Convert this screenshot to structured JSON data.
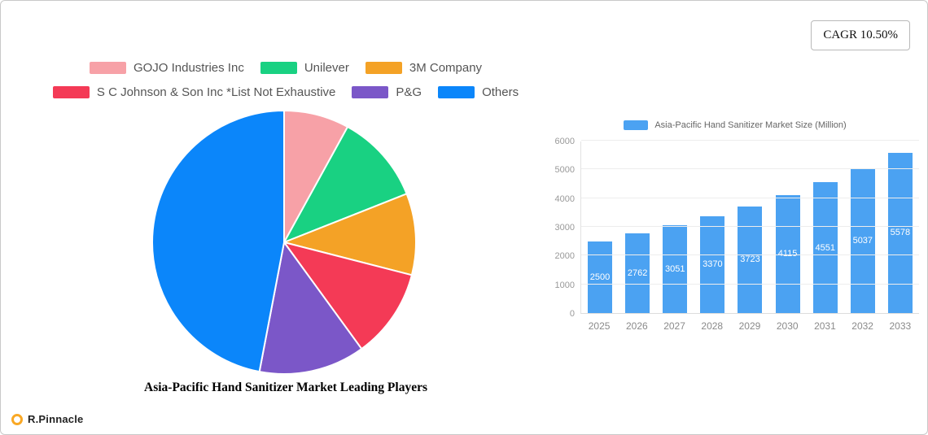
{
  "cagr_label": "CAGR 10.50%",
  "brand": {
    "name": "R.Pinnacle",
    "icon_color": "#f9a825"
  },
  "chart_data": [
    {
      "type": "pie",
      "title": "Asia-Pacific Hand Sanitizer Market Leading Players",
      "legend_position": "top",
      "legend_rows": [
        [
          0,
          1,
          2
        ],
        [
          3,
          4,
          5
        ]
      ],
      "slices": [
        {
          "label": "GOJO Industries Inc",
          "value": 8,
          "color": "#f7a1a7"
        },
        {
          "label": "Unilever",
          "value": 11,
          "color": "#19d182"
        },
        {
          "label": "3M Company",
          "value": 10,
          "color": "#f4a226"
        },
        {
          "label": "S  C  Johnson & Son Inc *List Not Exhaustive",
          "value": 11,
          "color": "#f43a56"
        },
        {
          "label": "P&G",
          "value": 13,
          "color": "#7b57c8"
        },
        {
          "label": "Others",
          "value": 47,
          "color": "#0b86fa"
        }
      ],
      "start_angle_deg": 0,
      "direction": "clockwise"
    },
    {
      "type": "bar",
      "legend": "Asia-Pacific Hand Sanitizer Market Size (Million)",
      "categories": [
        "2025",
        "2026",
        "2027",
        "2028",
        "2029",
        "2030",
        "2031",
        "2032",
        "2033"
      ],
      "values": [
        2500,
        2762,
        3051,
        3370,
        3723,
        4115,
        4551,
        5037,
        5578
      ],
      "bar_color": "#4ba2f2",
      "value_label_color": "#ffffff",
      "xlabel": "",
      "ylabel": "",
      "ylim": [
        0,
        6000
      ],
      "yticks": [
        0,
        1000,
        2000,
        3000,
        4000,
        5000,
        6000
      ],
      "grid": true,
      "legend_position": "top"
    }
  ]
}
